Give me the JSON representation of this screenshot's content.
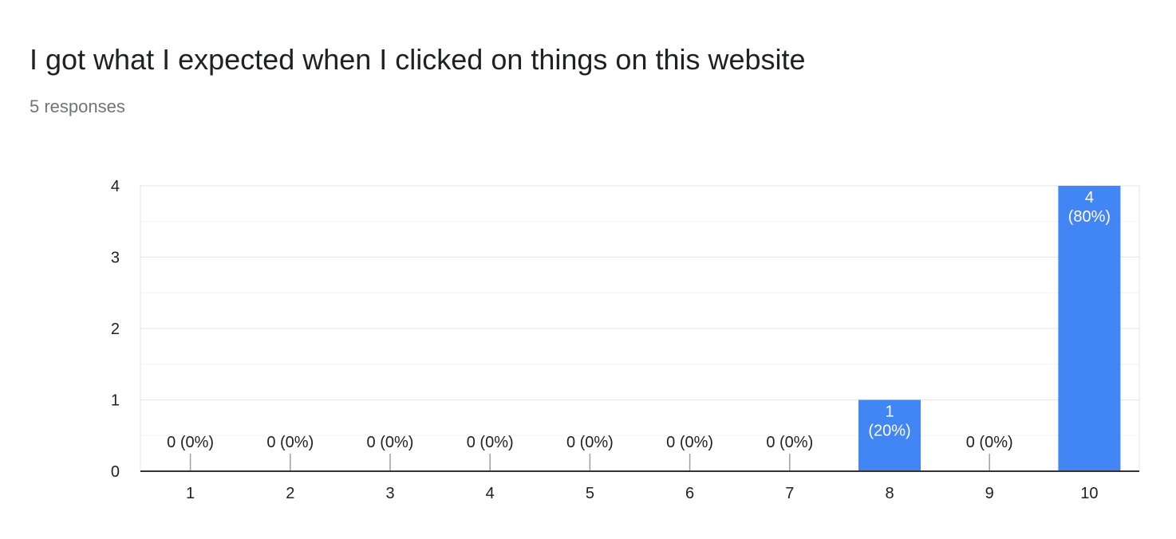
{
  "header": {
    "title": "I got what I expected when I clicked on things on this website",
    "responses": "5 responses"
  },
  "colors": {
    "bar": "#4285f4",
    "axis": "#333333",
    "grid_major": "#e6e6e6",
    "grid_minor": "#f3f3f3",
    "label": "#202124"
  },
  "chart_data": {
    "type": "bar",
    "title": "I got what I expected when I clicked on things on this website",
    "subtitle": "5 responses",
    "xlabel": "",
    "ylabel": "",
    "categories": [
      "1",
      "2",
      "3",
      "4",
      "5",
      "6",
      "7",
      "8",
      "9",
      "10"
    ],
    "values": [
      0,
      0,
      0,
      0,
      0,
      0,
      0,
      1,
      0,
      4
    ],
    "data_labels": [
      [
        "0 (0%)"
      ],
      [
        "0 (0%)"
      ],
      [
        "0 (0%)"
      ],
      [
        "0 (0%)"
      ],
      [
        "0 (0%)"
      ],
      [
        "0 (0%)"
      ],
      [
        "0 (0%)"
      ],
      [
        "1",
        "(20%)"
      ],
      [
        "0 (0%)"
      ],
      [
        "4",
        "(80%)"
      ]
    ],
    "ylim": [
      0,
      4
    ],
    "yticks": [
      "0",
      "1",
      "2",
      "3",
      "4"
    ],
    "grid": true,
    "legend": "none"
  }
}
